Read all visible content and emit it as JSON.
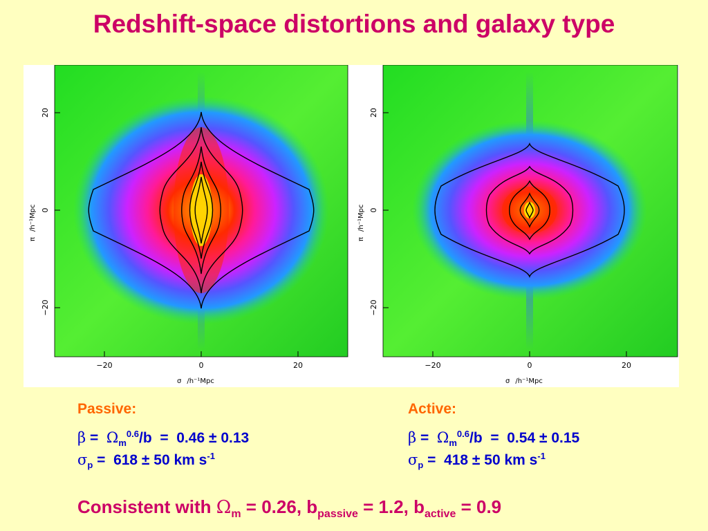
{
  "title": "Redshift-space distortions and galaxy type",
  "panels": [
    {
      "name": "passive",
      "x_ticks": [
        "−20",
        "0",
        "20"
      ],
      "y_ticks": [
        "−20",
        "0",
        "20"
      ],
      "xlabel_sym": "σ",
      "xlabel_unit": "/h⁻¹Mpc",
      "ylabel_sym": "π",
      "ylabel_unit": "/h⁻¹Mpc"
    },
    {
      "name": "active",
      "x_ticks": [
        "−20",
        "0",
        "20"
      ],
      "y_ticks": [
        "−20",
        "0",
        "20"
      ],
      "xlabel_sym": "σ",
      "xlabel_unit": "/h⁻¹Mpc",
      "ylabel_sym": "π",
      "ylabel_unit": "/h⁻¹Mpc"
    }
  ],
  "passive": {
    "heading": "Passive:",
    "beta_sym": "β",
    "beta_eq": " = ",
    "omega_sym": "Ω",
    "omega_sub": "m",
    "omega_sup": "0.6",
    "beta_rest": "/b  =  0.46 ± 0.13",
    "sigma_sym": "σ",
    "sigma_sub": "p",
    "sigma_rest": " =  618 ± 50 km s",
    "sigma_sup": "-1"
  },
  "active": {
    "heading": "Active:",
    "beta_sym": "β",
    "beta_eq": " = ",
    "omega_sym": "Ω",
    "omega_sub": "m",
    "omega_sup": "0.6",
    "beta_rest": "/b  =  0.54 ± 0.15",
    "sigma_sym": "σ",
    "sigma_sub": "p",
    "sigma_rest": " =  418 ± 50 km s",
    "sigma_sup": "-1"
  },
  "footer": {
    "prefix": "Consistent with ",
    "omega_sym": "Ω",
    "omega_sub": "m",
    "omega_val": " = 0.26, b",
    "passive_sub": "passive",
    "passive_val": " = 1.2, b",
    "active_sub": "active",
    "active_val": " = 0.9"
  },
  "colors": {
    "title": "#cc0066",
    "heading": "#ff6600",
    "params": "#0000cc",
    "background": "#ffffc0"
  }
}
